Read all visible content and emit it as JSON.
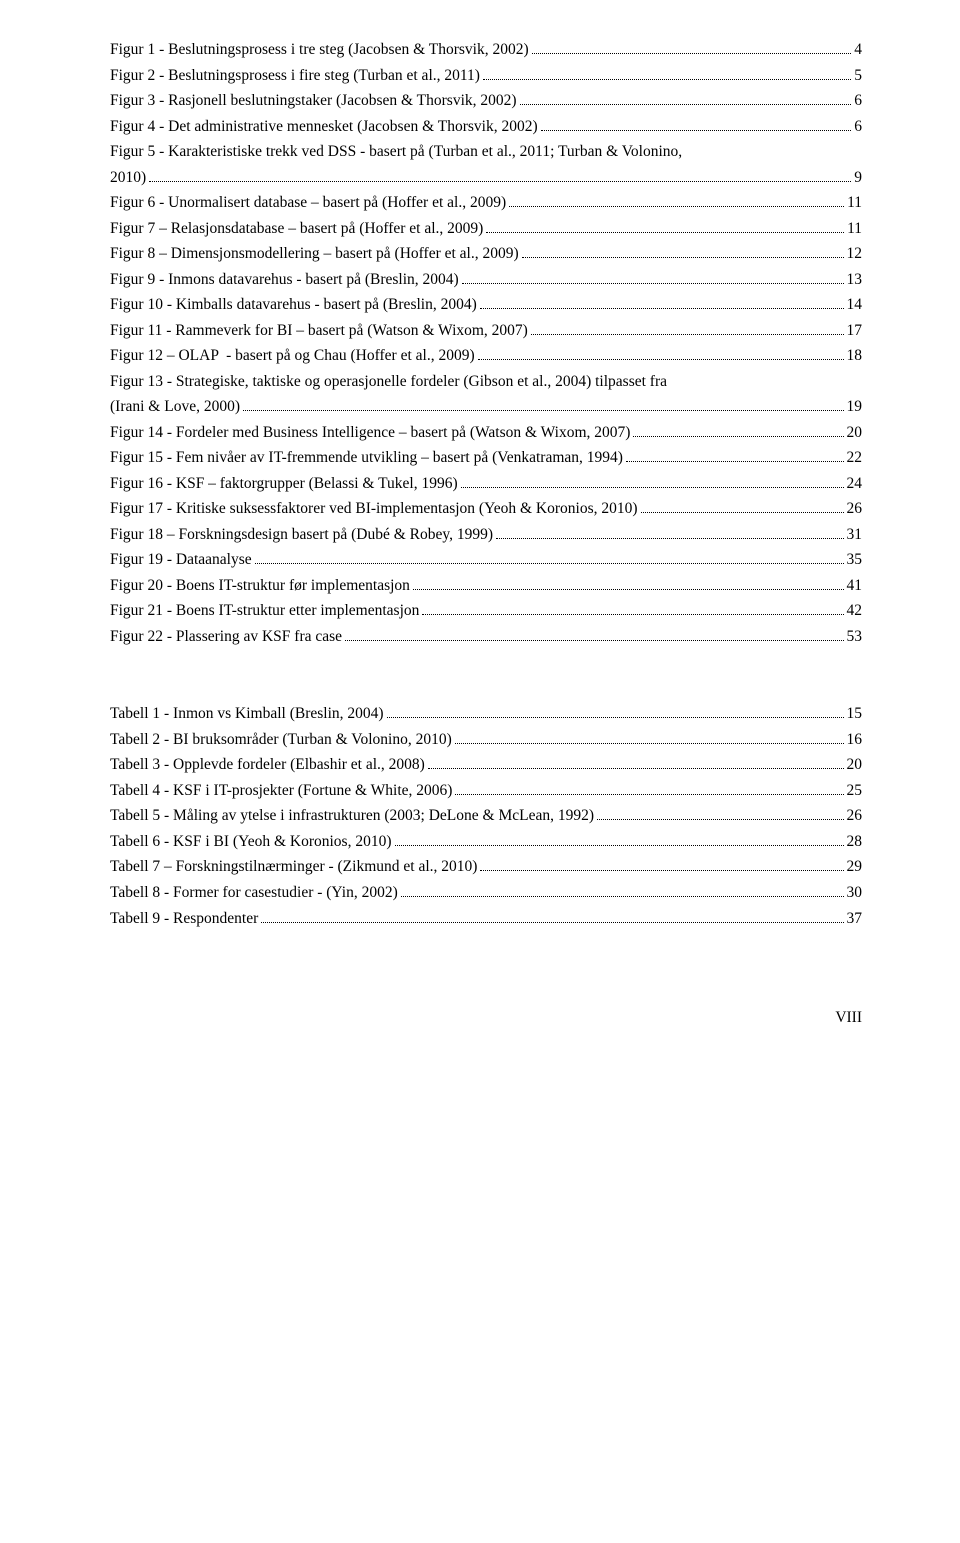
{
  "lists": [
    {
      "entries": [
        {
          "text": "Figur 1 - Beslutningsprosess i tre steg (Jacobsen & Thorsvik, 2002)",
          "page": "4"
        },
        {
          "text": "Figur 2 - Beslutningsprosess i fire steg (Turban et al., 2011)",
          "page": "5"
        },
        {
          "text": "Figur 3 - Rasjonell beslutningstaker (Jacobsen & Thorsvik, 2002)",
          "page": "6"
        },
        {
          "text": "Figur 4 - Det administrative mennesket (Jacobsen & Thorsvik, 2002)",
          "page": "6"
        },
        {
          "wrap": "Figur 5 - Karakteristiske trekk ved DSS - basert på (Turban et al., 2011; Turban & Volonino,",
          "text": "2010)",
          "page": "9"
        },
        {
          "text": "Figur 6 - Unormalisert database – basert på (Hoffer et al., 2009)",
          "page": "11"
        },
        {
          "text": "Figur 7 – Relasjonsdatabase – basert på (Hoffer et al., 2009)",
          "page": "11"
        },
        {
          "text": "Figur 8 – Dimensjonsmodellering – basert på (Hoffer et al., 2009)",
          "page": "12"
        },
        {
          "text": "Figur 9 - Inmons datavarehus - basert på (Breslin, 2004)",
          "page": "13"
        },
        {
          "text": "Figur 10 - Kimballs datavarehus - basert på (Breslin, 2004)",
          "page": "14"
        },
        {
          "text": "Figur 11 - Rammeverk for BI – basert på (Watson & Wixom, 2007)",
          "page": "17"
        },
        {
          "text": "Figur 12 – OLAP  - basert på og Chau (Hoffer et al., 2009)",
          "page": "18"
        },
        {
          "wrap": "Figur 13 - Strategiske, taktiske og operasjonelle fordeler (Gibson et al., 2004) tilpasset fra",
          "text": "(Irani & Love, 2000)",
          "page": "19"
        },
        {
          "text": "Figur 14 - Fordeler med Business Intelligence – basert på (Watson & Wixom, 2007)",
          "page": "20"
        },
        {
          "text": "Figur 15 - Fem nivåer av IT-fremmende utvikling – basert på (Venkatraman, 1994)",
          "page": "22"
        },
        {
          "text": "Figur 16 - KSF – faktorgrupper (Belassi & Tukel, 1996)",
          "page": "24"
        },
        {
          "text": "Figur 17 - Kritiske suksessfaktorer ved BI-implementasjon (Yeoh & Koronios, 2010)",
          "page": "26"
        },
        {
          "text": "Figur 18 – Forskningsdesign basert på (Dubé & Robey, 1999)",
          "page": "31"
        },
        {
          "text": "Figur 19 - Dataanalyse",
          "page": "35"
        },
        {
          "text": "Figur 20 - Boens IT-struktur før implementasjon",
          "page": "41"
        },
        {
          "text": "Figur 21 - Boens IT-struktur etter implementasjon",
          "page": "42"
        },
        {
          "text": "Figur 22 - Plassering av KSF fra case",
          "page": "53"
        }
      ]
    },
    {
      "entries": [
        {
          "text": "Tabell 1 - Inmon vs Kimball (Breslin, 2004)",
          "page": "15"
        },
        {
          "text": "Tabell 2 - BI bruksområder (Turban & Volonino, 2010)",
          "page": "16"
        },
        {
          "text": "Tabell 3 - Opplevde fordeler (Elbashir et al., 2008)",
          "page": "20"
        },
        {
          "text": "Tabell 4 - KSF i IT-prosjekter (Fortune & White, 2006)",
          "page": "25"
        },
        {
          "text": "Tabell 5 - Måling av ytelse i infrastrukturen (2003; DeLone & McLean, 1992)",
          "page": "26"
        },
        {
          "text": "Tabell 6 - KSF i BI (Yeoh & Koronios, 2010)",
          "page": "28"
        },
        {
          "text": "Tabell 7 – Forskningstilnærminger - (Zikmund et al., 2010)",
          "page": "29"
        },
        {
          "text": "Tabell 8 - Former for casestudier - (Yin, 2002)",
          "page": "30"
        },
        {
          "text": "Tabell 9 - Respondenter",
          "page": "37"
        }
      ]
    }
  ],
  "footer": "VIII"
}
